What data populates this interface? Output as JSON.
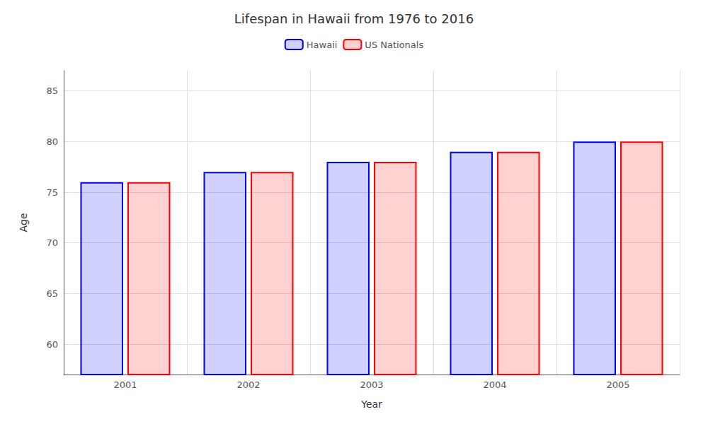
{
  "chart_data": {
    "type": "bar",
    "title": "Lifespan in Hawaii from 1976 to 2016",
    "xlabel": "Year",
    "ylabel": "Age",
    "categories": [
      "2001",
      "2002",
      "2003",
      "2004",
      "2005"
    ],
    "series": [
      {
        "name": "Hawaii",
        "color": "#0000ff",
        "values": [
          76,
          77,
          78,
          79,
          80
        ]
      },
      {
        "name": "US Nationals",
        "color": "#ff0000",
        "values": [
          76,
          77,
          78,
          79,
          80
        ]
      }
    ],
    "ylim": [
      57,
      87
    ],
    "yticks": [
      60,
      65,
      70,
      75,
      80,
      85
    ],
    "grid": true,
    "legend": "top"
  }
}
